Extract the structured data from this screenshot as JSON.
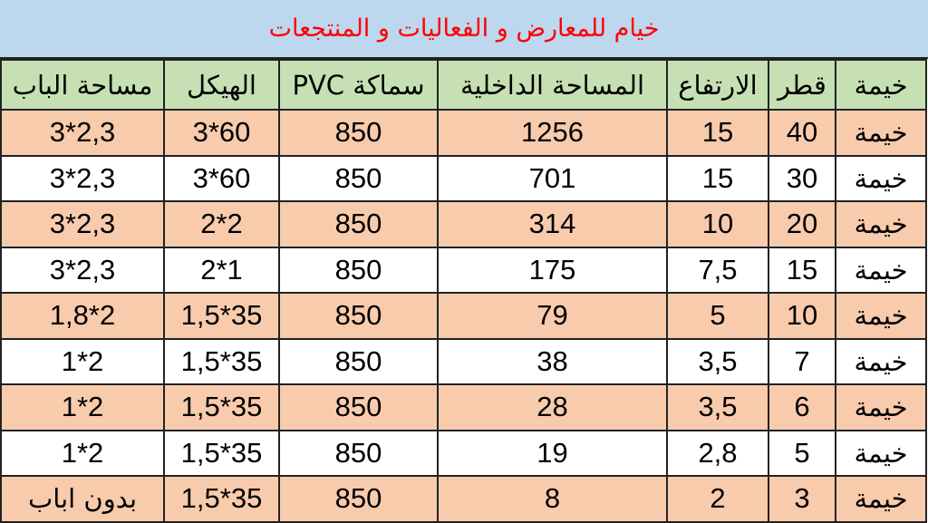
{
  "title": "خيام للمعارض و الفعاليات و المنتجعات",
  "colors": {
    "title_bg": "#bdd7ee",
    "title_text": "#ff0000",
    "header_bg": "#c6e0b4",
    "row_alt_bg": "#f8cbad"
  },
  "headers": [
    "خيمة",
    "قطر",
    "الارتفاع",
    "المساحة الداخلية",
    "سماكة PVC",
    "الهيكل",
    "مساحة الباب"
  ],
  "rows": [
    [
      "خيمة",
      "40",
      "15",
      "1256",
      "850",
      "3*60",
      "3*2,3"
    ],
    [
      "خيمة",
      "30",
      "15",
      "701",
      "850",
      "3*60",
      "3*2,3"
    ],
    [
      "خيمة",
      "20",
      "10",
      "314",
      "850",
      "2*2",
      "3*2,3"
    ],
    [
      "خيمة",
      "15",
      "7,5",
      "175",
      "850",
      "2*1",
      "3*2,3"
    ],
    [
      "خيمة",
      "10",
      "5",
      "79",
      "850",
      "1,5*35",
      "1,8*2"
    ],
    [
      "خيمة",
      "7",
      "3,5",
      "38",
      "850",
      "1,5*35",
      "1*2"
    ],
    [
      "خيمة",
      "6",
      "3,5",
      "28",
      "850",
      "1,5*35",
      "1*2"
    ],
    [
      "خيمة",
      "5",
      "2,8",
      "19",
      "850",
      "1,5*35",
      "1*2"
    ],
    [
      "خيمة",
      "3",
      "2",
      "8",
      "850",
      "1,5*35",
      "بدون اباب"
    ]
  ]
}
